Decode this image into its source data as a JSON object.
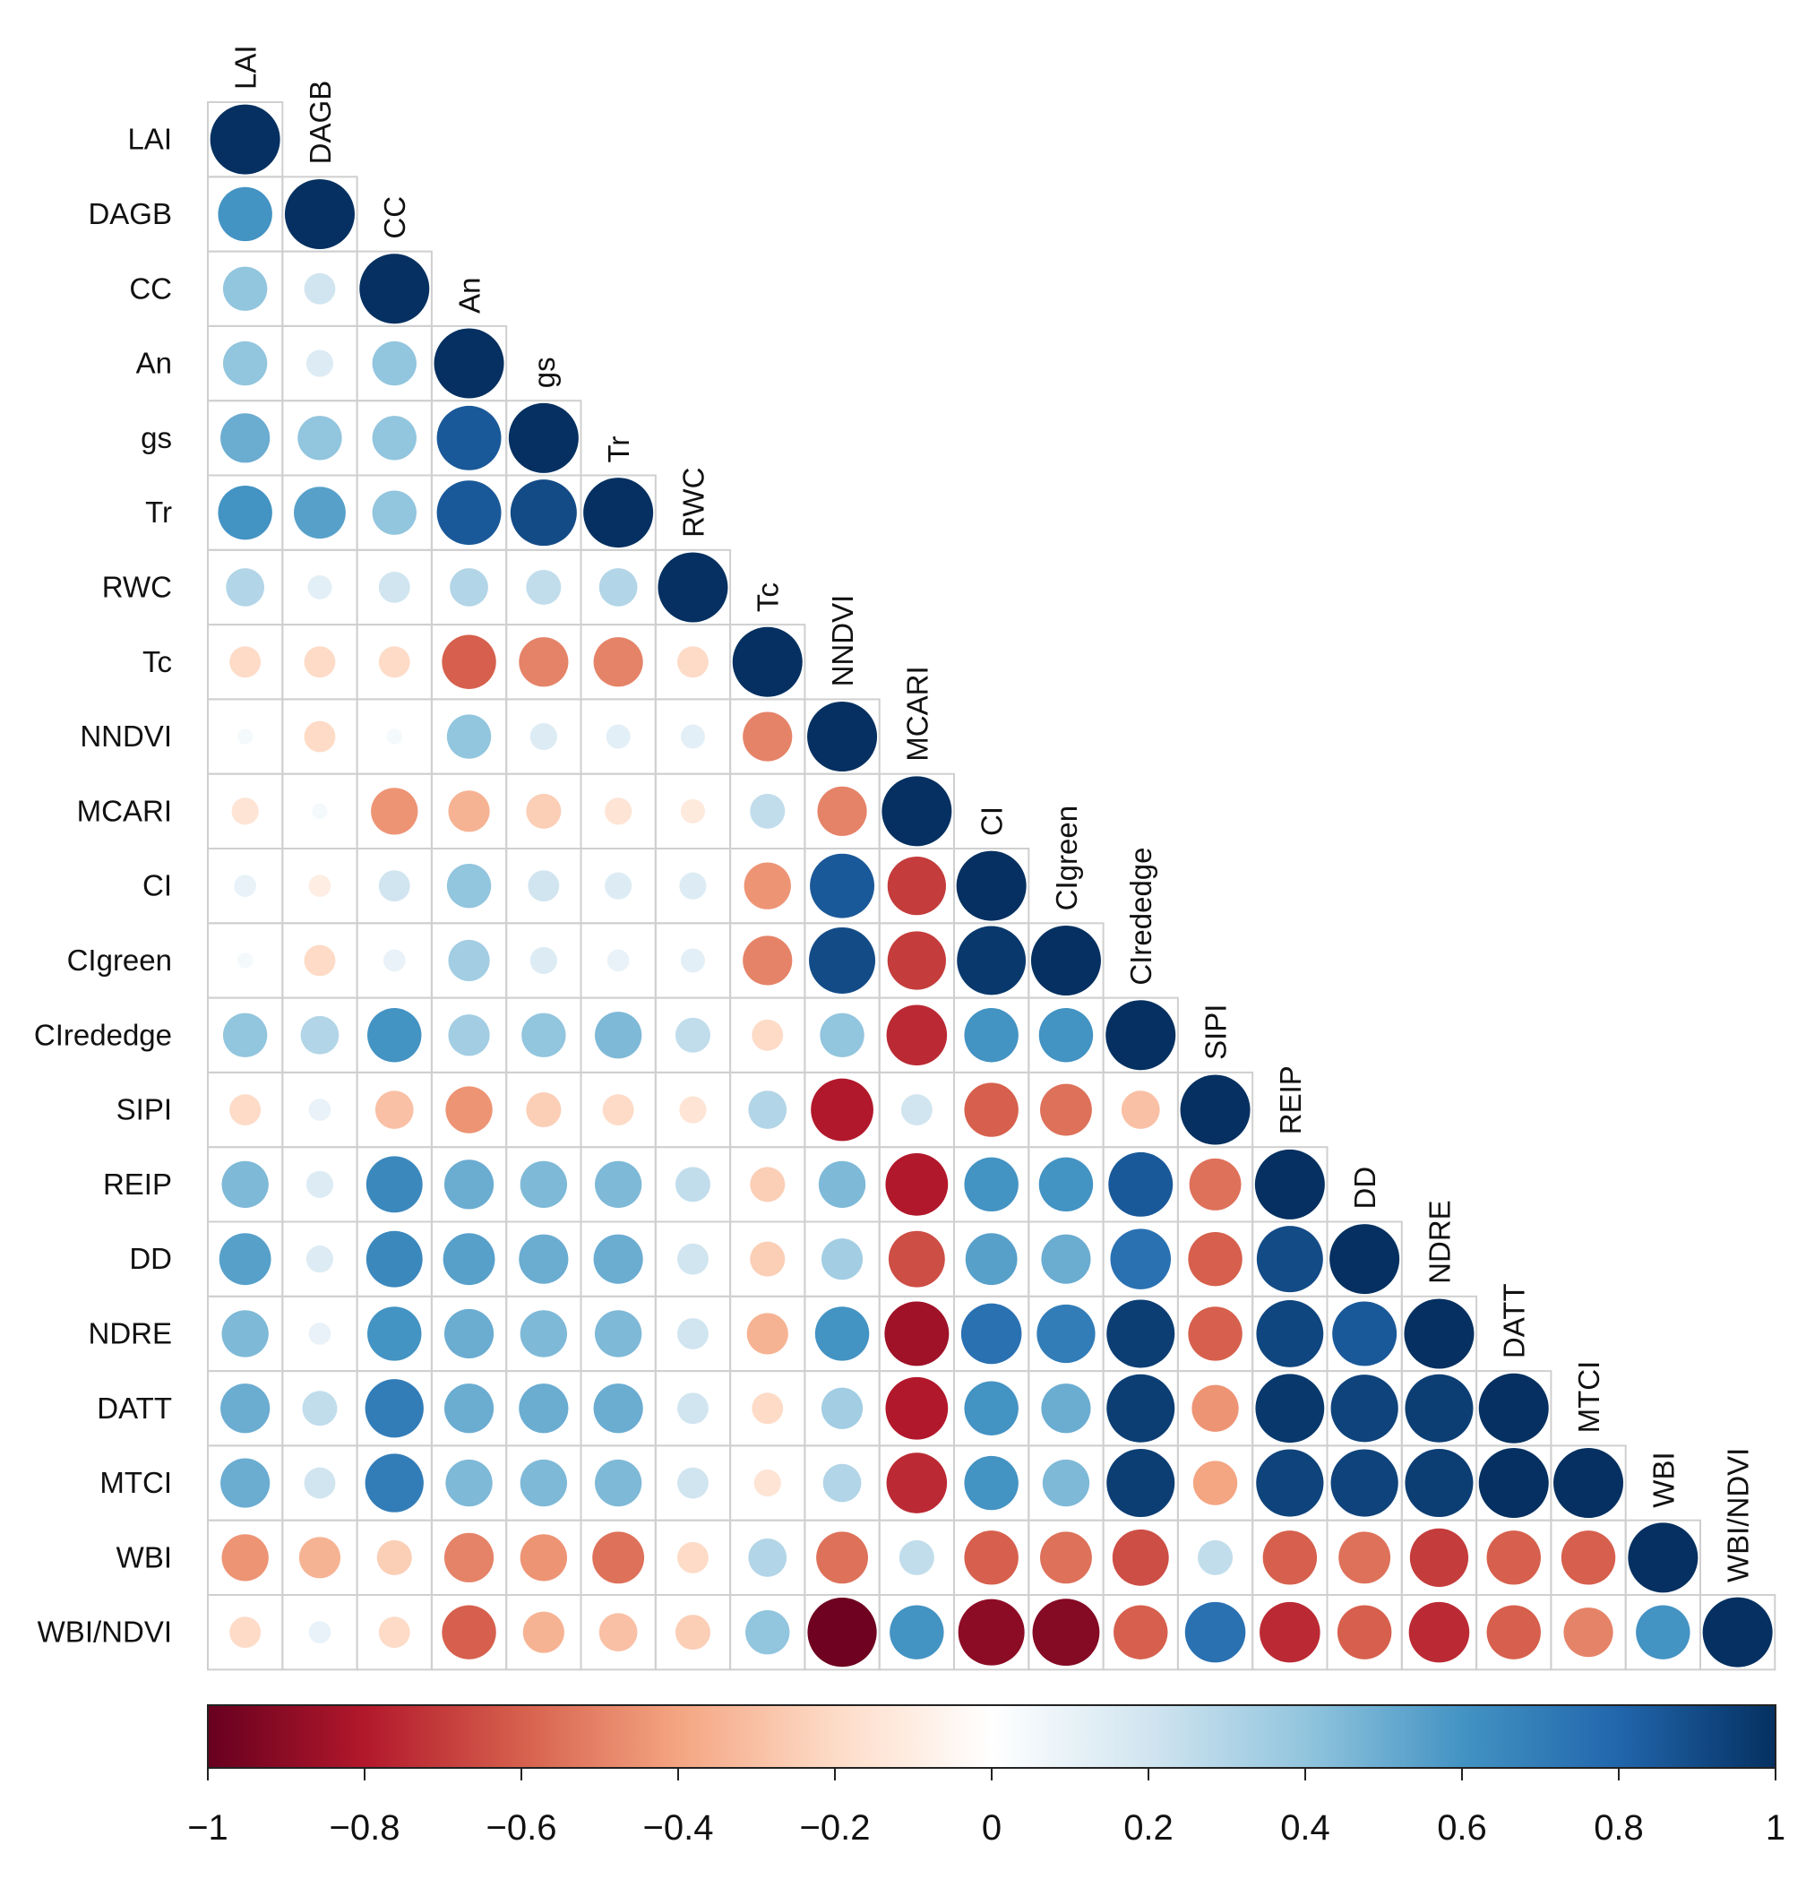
{
  "chart_data": {
    "type": "heatmap",
    "title": "",
    "subtitle": "",
    "variables": [
      "LAI",
      "DAGB",
      "CC",
      "An",
      "gs",
      "Tr",
      "RWC",
      "Tc",
      "NNDVI",
      "MCARI",
      "CI",
      "CIgreen",
      "CIrededge",
      "SIPI",
      "REIP",
      "DD",
      "NDRE",
      "DATT",
      "MTCI",
      "WBI",
      "WBI/NDVI"
    ],
    "lower_triangle_values": [
      [
        1.0
      ],
      [
        0.6,
        1.0
      ],
      [
        0.4,
        0.2,
        1.0
      ],
      [
        0.4,
        0.15,
        0.4,
        1.0
      ],
      [
        0.5,
        0.4,
        0.4,
        0.85,
        1.0
      ],
      [
        0.6,
        0.55,
        0.4,
        0.85,
        0.9,
        1.0
      ],
      [
        0.3,
        0.12,
        0.2,
        0.3,
        0.25,
        0.3,
        1.0
      ],
      [
        -0.2,
        -0.2,
        -0.2,
        -0.6,
        -0.5,
        -0.5,
        -0.2,
        1.0
      ],
      [
        0.05,
        -0.2,
        0.05,
        0.4,
        0.15,
        0.12,
        0.12,
        -0.5,
        1.0
      ],
      [
        -0.15,
        0.05,
        -0.45,
        -0.35,
        -0.25,
        -0.15,
        -0.12,
        0.25,
        -0.5,
        1.0
      ],
      [
        0.1,
        -0.1,
        0.2,
        0.4,
        0.2,
        0.15,
        0.15,
        -0.45,
        0.85,
        -0.7,
        1.0
      ],
      [
        0.05,
        -0.2,
        0.1,
        0.35,
        0.15,
        0.1,
        0.12,
        -0.5,
        0.9,
        -0.7,
        0.97,
        1.0
      ],
      [
        0.4,
        0.3,
        0.6,
        0.35,
        0.4,
        0.45,
        0.25,
        -0.2,
        0.4,
        -0.75,
        0.6,
        0.6,
        1.0
      ],
      [
        -0.2,
        0.1,
        -0.3,
        -0.45,
        -0.25,
        -0.2,
        -0.15,
        0.3,
        -0.8,
        0.2,
        -0.6,
        -0.55,
        -0.3,
        1.0
      ],
      [
        0.45,
        0.15,
        0.65,
        0.5,
        0.45,
        0.45,
        0.25,
        -0.25,
        0.45,
        -0.8,
        0.6,
        0.6,
        0.85,
        -0.55,
        1.0
      ],
      [
        0.55,
        0.15,
        0.65,
        0.55,
        0.5,
        0.5,
        0.2,
        -0.25,
        0.35,
        -0.65,
        0.55,
        0.5,
        0.75,
        -0.6,
        0.9,
        1.0
      ],
      [
        0.45,
        0.1,
        0.6,
        0.5,
        0.45,
        0.45,
        0.2,
        -0.35,
        0.6,
        -0.85,
        0.75,
        0.7,
        0.95,
        -0.6,
        0.92,
        0.85,
        1.0
      ],
      [
        0.5,
        0.25,
        0.7,
        0.5,
        0.5,
        0.5,
        0.2,
        -0.2,
        0.35,
        -0.8,
        0.6,
        0.5,
        0.95,
        -0.45,
        0.97,
        0.93,
        0.95,
        1.0
      ],
      [
        0.5,
        0.2,
        0.7,
        0.45,
        0.45,
        0.45,
        0.2,
        -0.15,
        0.3,
        -0.75,
        0.6,
        0.45,
        0.95,
        -0.4,
        0.93,
        0.93,
        0.95,
        1.0,
        1.0
      ],
      [
        -0.45,
        -0.35,
        -0.25,
        -0.5,
        -0.45,
        -0.55,
        -0.2,
        0.3,
        -0.55,
        0.25,
        -0.6,
        -0.55,
        -0.65,
        0.25,
        -0.6,
        -0.55,
        -0.7,
        -0.6,
        -0.6,
        1.0
      ],
      [
        -0.2,
        0.1,
        -0.2,
        -0.6,
        -0.35,
        -0.3,
        -0.25,
        0.4,
        -0.98,
        0.6,
        -0.9,
        -0.92,
        -0.6,
        0.75,
        -0.75,
        -0.6,
        -0.75,
        -0.6,
        -0.5,
        0.6,
        1.0
      ]
    ],
    "colorbar": {
      "range": [
        -1,
        1
      ],
      "ticks": [
        -1,
        -0.8,
        -0.6,
        -0.4,
        -0.2,
        0,
        0.2,
        0.4,
        0.6,
        0.8,
        1
      ],
      "tick_labels": [
        "−1",
        "−0.8",
        "−0.6",
        "−0.4",
        "−0.2",
        "0",
        "0.2",
        "0.4",
        "0.6",
        "0.8",
        "1"
      ],
      "color_stops": [
        "#67001f",
        "#b2182b",
        "#d6604d",
        "#f4a582",
        "#fddbc7",
        "#ffffff",
        "#d1e5f0",
        "#92c5de",
        "#4393c3",
        "#2166ac",
        "#053061"
      ]
    },
    "legend": "bottom colorbar"
  }
}
